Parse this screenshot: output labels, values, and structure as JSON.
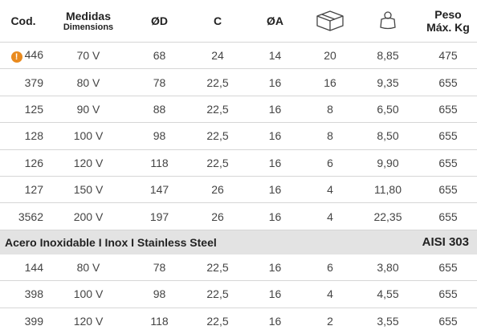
{
  "header": {
    "cod": "Cod.",
    "medidas": "Medidas",
    "dimensions": "Dimensions",
    "od": "ØD",
    "c": "C",
    "oa": "ØA",
    "box_icon": "box-icon",
    "weight_icon": "weight-icon",
    "peso": "Peso",
    "max_kg": "Máx. Kg"
  },
  "rows": [
    {
      "cod": "446",
      "warning": true,
      "medidas": "70 V",
      "od": "68",
      "c": "24",
      "oa": "14",
      "box": "20",
      "weight": "8,85",
      "peso": "475"
    },
    {
      "cod": "379",
      "warning": false,
      "medidas": "80 V",
      "od": "78",
      "c": "22,5",
      "oa": "16",
      "box": "16",
      "weight": "9,35",
      "peso": "655"
    },
    {
      "cod": "125",
      "warning": false,
      "medidas": "90 V",
      "od": "88",
      "c": "22,5",
      "oa": "16",
      "box": "8",
      "weight": "6,50",
      "peso": "655"
    },
    {
      "cod": "128",
      "warning": false,
      "medidas": "100 V",
      "od": "98",
      "c": "22,5",
      "oa": "16",
      "box": "8",
      "weight": "8,50",
      "peso": "655"
    },
    {
      "cod": "126",
      "warning": false,
      "medidas": "120 V",
      "od": "118",
      "c": "22,5",
      "oa": "16",
      "box": "6",
      "weight": "9,90",
      "peso": "655"
    },
    {
      "cod": "127",
      "warning": false,
      "medidas": "150 V",
      "od": "147",
      "c": "26",
      "oa": "16",
      "box": "4",
      "weight": "11,80",
      "peso": "655"
    },
    {
      "cod": "3562",
      "warning": false,
      "medidas": "200 V",
      "od": "197",
      "c": "26",
      "oa": "16",
      "box": "4",
      "weight": "22,35",
      "peso": "655"
    }
  ],
  "section": {
    "label": "Acero Inoxidable I Inox I Stainless Steel",
    "spec": "AISI 303"
  },
  "rows2": [
    {
      "cod": "144",
      "medidas": "80 V",
      "od": "78",
      "c": "22,5",
      "oa": "16",
      "box": "6",
      "weight": "3,80",
      "peso": "655"
    },
    {
      "cod": "398",
      "medidas": "100 V",
      "od": "98",
      "c": "22,5",
      "oa": "16",
      "box": "4",
      "weight": "4,55",
      "peso": "655"
    },
    {
      "cod": "399",
      "medidas": "120 V",
      "od": "118",
      "c": "22,5",
      "oa": "16",
      "box": "2",
      "weight": "3,55",
      "peso": "655"
    }
  ],
  "colors": {
    "accent": "#e98a1e",
    "section_bg": "#e3e3e3",
    "divider": "#d6d6d6"
  }
}
